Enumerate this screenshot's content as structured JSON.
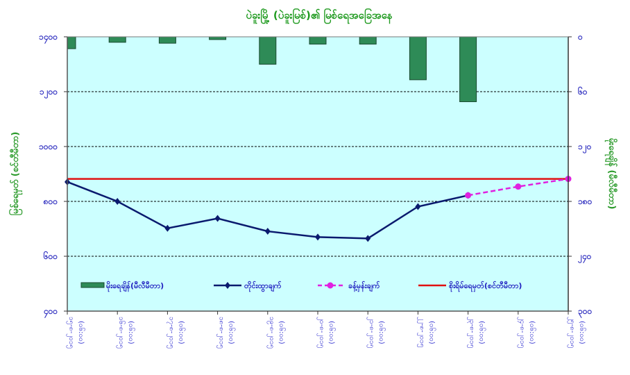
{
  "chart_data": {
    "type": "bar+line",
    "title": "ပဲခူးမြို့ (ပဲခူးမြစ်)၏ မြစ်ရေအခြေအနေ",
    "ylabel_left": "မြစ်ရေမှတ် (စင်တီမီတာ)",
    "ylabel_right": "မိုးရေချိန် (မီလီမီတာ)",
    "ylim_left": [
      400,
      1400
    ],
    "ylim_right_inverted": [
      0,
      300
    ],
    "yticks_left": [
      "၄၀၀",
      "၆၀၀",
      "၈၀၀",
      "၁၀၀၀",
      "၁၂၀၀",
      "၁၄၀၀"
    ],
    "yticks_left_values": [
      400,
      600,
      800,
      1000,
      1200,
      1400
    ],
    "yticks_right": [
      "၀",
      "၆၀",
      "၁၂၀",
      "၁၈၀",
      "၂၄၀",
      "၃၀၀"
    ],
    "yticks_right_values": [
      0,
      60,
      120,
      180,
      240,
      300
    ],
    "categories": [
      [
        "၁၅-၈-၂၀၁၅",
        "(၀၆:၀၀)"
      ],
      [
        "၁၆-၈-၂၀၁၅",
        "(၀၆:၀၀)"
      ],
      [
        "၁၇-၈-၂၀၁၅",
        "(၀၆:၀၀)"
      ],
      [
        "၁၈-၈-၂၀၁၅",
        "(၀၆:၀၀)"
      ],
      [
        "၁၉-၈-၂၀၁၅",
        "(၀၆:၀၀)"
      ],
      [
        "၂၀-၈-၂၀၁၅",
        "(၀၆:၀၀)"
      ],
      [
        "၂၁-၈-၂၀၁၅",
        "(၀၆:၀၀)"
      ],
      [
        "၂၂-၈-၂၀၁၅",
        "(၀၆:၀၀)"
      ],
      [
        "၂၃-၈-၂၀၁၅",
        "(၀၆:၀၀)"
      ],
      [
        "၂၄-၈-၂၀၁၅",
        "(၀၆:၀၀)"
      ],
      [
        "၂၅-၈-၂၀၁၅",
        "(၀၆:၀၀)"
      ]
    ],
    "grid": true,
    "legend_position": "bottom-inside",
    "series": [
      {
        "name": "မိုးရေချိန်(မီလီမီတာ)",
        "kind": "bar",
        "axis": "right",
        "color": "#2e8b57",
        "values": [
          13,
          6,
          7,
          3,
          30,
          8,
          8,
          47,
          71,
          null,
          null
        ]
      },
      {
        "name": "တိုင်းထွာချက်",
        "kind": "line",
        "axis": "left",
        "color": "#0a1a6e",
        "values": [
          871,
          800,
          702,
          738,
          691,
          670,
          665,
          781,
          822,
          null,
          null
        ]
      },
      {
        "name": "ခန့်မှန်းချက်",
        "kind": "dashed-line",
        "axis": "left",
        "color": "#e020e0",
        "values": [
          null,
          null,
          null,
          null,
          null,
          null,
          null,
          null,
          822,
          854,
          882
        ]
      },
      {
        "name": "စိုးရိမ်ရေမှတ်(စင်တီမီတာ)",
        "kind": "hline",
        "axis": "left",
        "color": "#e01010",
        "value": 882
      }
    ],
    "plot_background": "#ccffff"
  }
}
